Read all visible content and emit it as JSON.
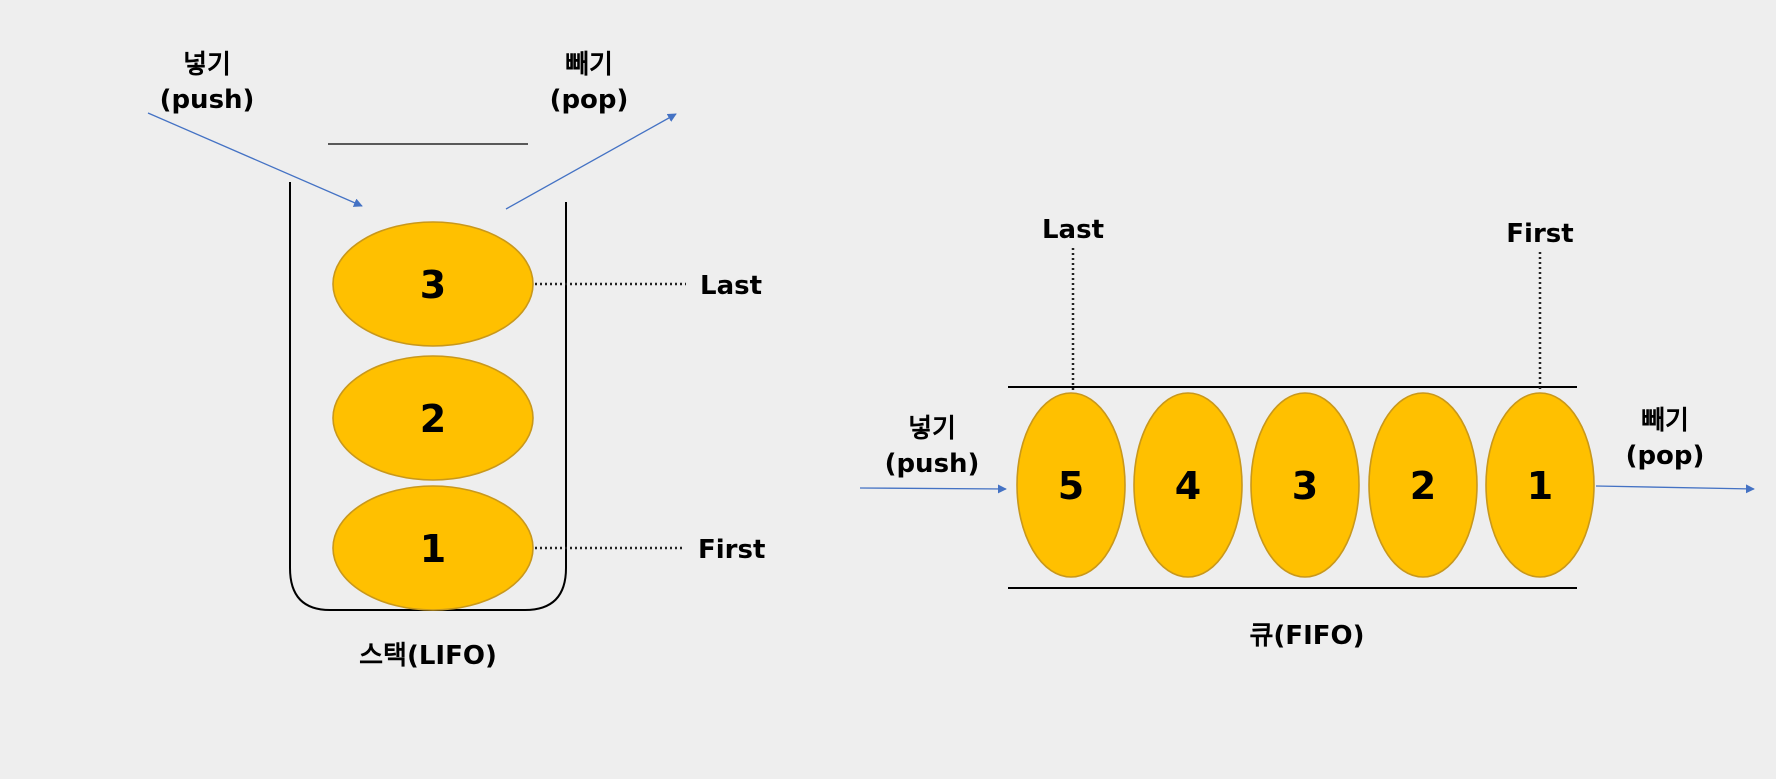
{
  "stack": {
    "push_label": "넣기",
    "push_sub": "(push)",
    "pop_label": "빼기",
    "pop_sub": "(pop)",
    "items": [
      "3",
      "2",
      "1"
    ],
    "last_label": "Last",
    "first_label": "First",
    "caption": "스택(LIFO)"
  },
  "queue": {
    "push_label": "넣기",
    "push_sub": "(push)",
    "pop_label": "빼기",
    "pop_sub": "(pop)",
    "items": [
      "5",
      "4",
      "3",
      "2",
      "1"
    ],
    "last_label": "Last",
    "first_label": "First",
    "caption": "큐(FIFO)"
  },
  "colors": {
    "background": "#eeeeee",
    "item_fill": "#ffc000",
    "item_stroke": "#c9981b",
    "arrow": "#4472c4"
  }
}
